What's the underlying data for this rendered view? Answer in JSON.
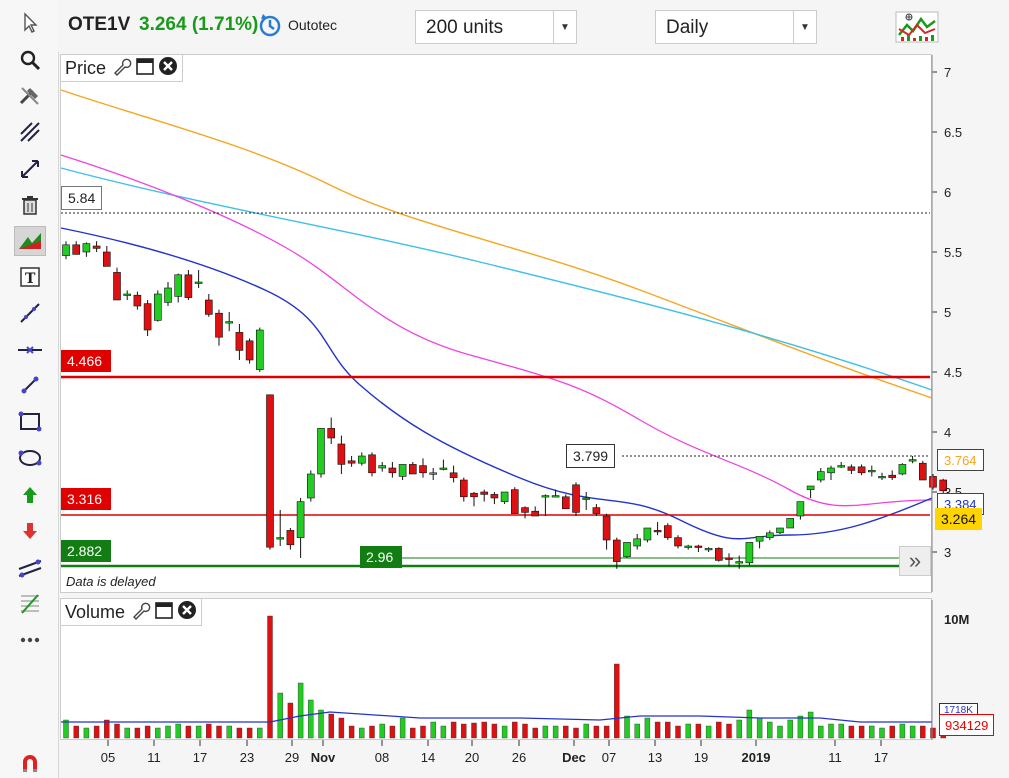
{
  "header": {
    "symbol": "OTE1V",
    "price_change": "3.264 (1.71%)",
    "company": "Outotec",
    "units_select": "200 units",
    "period_select": "Daily"
  },
  "price_panel": {
    "title": "Price",
    "delayed_note": "Data is delayed",
    "levels": {
      "l584": "5.84",
      "l4466": "4.466",
      "l3316": "3.316",
      "l2882": "2.882",
      "l296": "2.96",
      "l3799": "3.799"
    },
    "right_labels": {
      "v3764": "3.764",
      "v3384": "3.384",
      "v3264": "3.264"
    },
    "yticks": [
      "7",
      "6.5",
      "6",
      "5.5",
      "5",
      "4.5",
      "4",
      "3.5",
      "3"
    ],
    "expand_glyph": "»"
  },
  "volume_panel": {
    "title": "Volume",
    "ytick": "10M",
    "last_volume": "934129",
    "avg_volume": "1718K"
  },
  "xaxis": {
    "ticks": [
      "05",
      "11",
      "17",
      "23",
      "29",
      "Nov",
      "08",
      "14",
      "20",
      "26",
      "Dec",
      "07",
      "13",
      "19",
      "2019",
      "11",
      "17"
    ]
  },
  "colors": {
    "up": "#22cc22",
    "down": "#dd1111",
    "ma_orange": "#f5a623",
    "ma_cyan": "#3fc0e8",
    "ma_magenta": "#ee44dd",
    "ma_blue": "#2233cc",
    "support_green": "#127d12",
    "resistance_red": "#dd0000"
  },
  "chart_data": {
    "type": "candlestick",
    "y_axis": [
      3,
      7
    ],
    "candles_ohlc": [
      [
        5.47,
        5.59,
        5.44,
        5.56
      ],
      [
        5.56,
        5.59,
        5.52,
        5.48
      ],
      [
        5.5,
        5.58,
        5.46,
        5.57
      ],
      [
        5.55,
        5.59,
        5.5,
        5.53
      ],
      [
        5.5,
        5.55,
        5.38,
        5.38
      ],
      [
        5.33,
        5.37,
        5.1,
        5.1
      ],
      [
        5.14,
        5.18,
        5.1,
        5.15
      ],
      [
        5.14,
        5.17,
        5.02,
        5.05
      ],
      [
        5.07,
        5.1,
        4.8,
        4.85
      ],
      [
        4.93,
        5.18,
        4.92,
        5.15
      ],
      [
        5.08,
        5.25,
        5.05,
        5.2
      ],
      [
        5.13,
        5.32,
        5.08,
        5.31
      ],
      [
        5.31,
        5.35,
        5.1,
        5.12
      ],
      [
        5.25,
        5.35,
        5.2,
        5.25
      ],
      [
        5.1,
        5.15,
        4.96,
        4.98
      ],
      [
        4.99,
        5.02,
        4.72,
        4.79
      ],
      [
        4.92,
        5.0,
        4.84,
        4.92
      ],
      [
        4.83,
        4.9,
        4.6,
        4.68
      ],
      [
        4.76,
        4.78,
        4.57,
        4.6
      ],
      [
        4.52,
        4.87,
        4.5,
        4.85
      ],
      [
        4.31,
        4.31,
        3.02,
        3.04
      ],
      [
        3.12,
        3.35,
        3.05,
        3.12
      ],
      [
        3.18,
        3.2,
        3.02,
        3.06
      ],
      [
        3.12,
        3.45,
        2.95,
        3.42
      ],
      [
        3.45,
        3.68,
        3.42,
        3.65
      ],
      [
        3.65,
        4.03,
        3.62,
        4.03
      ],
      [
        4.03,
        4.12,
        3.9,
        3.95
      ],
      [
        3.9,
        3.97,
        3.65,
        3.73
      ],
      [
        3.76,
        3.8,
        3.71,
        3.74
      ],
      [
        3.74,
        3.83,
        3.72,
        3.8
      ],
      [
        3.81,
        3.83,
        3.63,
        3.66
      ],
      [
        3.7,
        3.75,
        3.67,
        3.72
      ],
      [
        3.7,
        3.75,
        3.62,
        3.66
      ],
      [
        3.63,
        3.73,
        3.6,
        3.73
      ],
      [
        3.73,
        3.75,
        3.65,
        3.65
      ],
      [
        3.72,
        3.78,
        3.62,
        3.66
      ],
      [
        3.66,
        3.7,
        3.6,
        3.66
      ],
      [
        3.7,
        3.77,
        3.68,
        3.7
      ],
      [
        3.66,
        3.72,
        3.58,
        3.62
      ],
      [
        3.6,
        3.62,
        3.42,
        3.46
      ],
      [
        3.49,
        3.5,
        3.38,
        3.46
      ],
      [
        3.5,
        3.52,
        3.42,
        3.48
      ],
      [
        3.48,
        3.5,
        3.4,
        3.45
      ],
      [
        3.42,
        3.5,
        3.4,
        3.5
      ],
      [
        3.52,
        3.54,
        3.32,
        3.32
      ],
      [
        3.37,
        3.38,
        3.28,
        3.33
      ],
      [
        3.34,
        3.38,
        3.3,
        3.3
      ],
      [
        3.46,
        3.48,
        3.3,
        3.47
      ],
      [
        3.47,
        3.52,
        3.46,
        3.47
      ],
      [
        3.46,
        3.48,
        3.36,
        3.36
      ],
      [
        3.56,
        3.58,
        3.3,
        3.33
      ],
      [
        3.45,
        3.5,
        3.35,
        3.45
      ],
      [
        3.37,
        3.4,
        3.3,
        3.32
      ],
      [
        3.3,
        3.32,
        3.02,
        3.1
      ],
      [
        3.1,
        3.12,
        2.86,
        2.92
      ],
      [
        2.96,
        3.08,
        2.95,
        3.08
      ],
      [
        3.05,
        3.15,
        3.02,
        3.11
      ],
      [
        3.1,
        3.2,
        3.08,
        3.2
      ],
      [
        3.18,
        3.25,
        3.14,
        3.17
      ],
      [
        3.22,
        3.24,
        3.1,
        3.12
      ],
      [
        3.12,
        3.14,
        3.03,
        3.05
      ],
      [
        3.04,
        3.06,
        3.02,
        3.05
      ],
      [
        3.05,
        3.06,
        3.0,
        3.04
      ],
      [
        3.03,
        3.04,
        3.0,
        3.03
      ],
      [
        3.03,
        3.04,
        2.92,
        2.93
      ],
      [
        2.95,
        2.99,
        2.88,
        2.94
      ],
      [
        2.91,
        2.97,
        2.86,
        2.92
      ],
      [
        2.91,
        3.08,
        2.89,
        3.08
      ],
      [
        3.09,
        3.13,
        3.03,
        3.13
      ],
      [
        3.12,
        3.18,
        3.1,
        3.16
      ],
      [
        3.16,
        3.2,
        3.15,
        3.2
      ],
      [
        3.2,
        3.28,
        3.2,
        3.28
      ],
      [
        3.3,
        3.42,
        3.27,
        3.42
      ],
      [
        3.52,
        3.55,
        3.45,
        3.55
      ],
      [
        3.6,
        3.7,
        3.58,
        3.67
      ],
      [
        3.66,
        3.72,
        3.6,
        3.7
      ],
      [
        3.71,
        3.75,
        3.7,
        3.72
      ],
      [
        3.71,
        3.73,
        3.65,
        3.68
      ],
      [
        3.71,
        3.73,
        3.64,
        3.66
      ],
      [
        3.67,
        3.72,
        3.63,
        3.68
      ],
      [
        3.63,
        3.66,
        3.6,
        3.63
      ],
      [
        3.64,
        3.68,
        3.6,
        3.62
      ],
      [
        3.65,
        3.74,
        3.64,
        3.73
      ],
      [
        3.76,
        3.8,
        3.74,
        3.77
      ],
      [
        3.74,
        3.76,
        3.6,
        3.6
      ],
      [
        3.63,
        3.65,
        3.52,
        3.54
      ],
      [
        3.6,
        3.61,
        3.48,
        3.51
      ]
    ],
    "volume_index": [
      0.18,
      0.12,
      0.1,
      0.12,
      0.18,
      0.14,
      0.1,
      0.1,
      0.12,
      0.1,
      0.12,
      0.14,
      0.12,
      0.12,
      0.14,
      0.12,
      0.12,
      0.1,
      0.1,
      0.1,
      1.22,
      0.45,
      0.35,
      0.55,
      0.38,
      0.28,
      0.24,
      0.2,
      0.12,
      0.1,
      0.12,
      0.14,
      0.12,
      0.2,
      0.1,
      0.12,
      0.16,
      0.12,
      0.16,
      0.14,
      0.15,
      0.16,
      0.14,
      0.12,
      0.16,
      0.14,
      0.1,
      0.12,
      0.12,
      0.12,
      0.1,
      0.14,
      0.12,
      0.12,
      0.74,
      0.22,
      0.14,
      0.2,
      0.16,
      0.16,
      0.12,
      0.14,
      0.14,
      0.12,
      0.16,
      0.14,
      0.18,
      0.28,
      0.2,
      0.16,
      0.12,
      0.18,
      0.22,
      0.26,
      0.12,
      0.14,
      0.14,
      0.12,
      0.12,
      0.12,
      0.1,
      0.12,
      0.14,
      0.12,
      0.12,
      0.1,
      0.1
    ]
  }
}
